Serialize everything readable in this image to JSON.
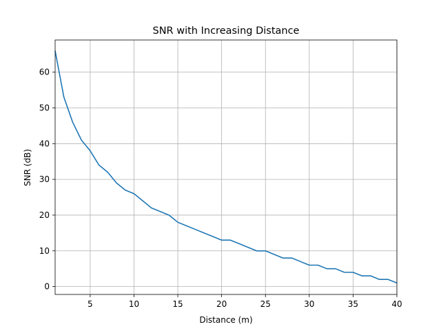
{
  "chart_data": {
    "type": "line",
    "title": "SNR with Increasing Distance",
    "xlabel": "Distance (m)",
    "ylabel": "SNR (dB)",
    "xlim": [
      1,
      40
    ],
    "ylim": [
      -2.2,
      69
    ],
    "xticks": [
      5,
      10,
      15,
      20,
      25,
      30,
      35,
      40
    ],
    "yticks": [
      0,
      10,
      20,
      30,
      40,
      50,
      60
    ],
    "grid": true,
    "series": [
      {
        "color": "#1f77b4",
        "x": [
          1,
          2,
          3,
          4,
          5,
          6,
          7,
          8,
          9,
          10,
          11,
          12,
          13,
          14,
          15,
          16,
          17,
          18,
          19,
          20,
          21,
          22,
          23,
          24,
          25,
          26,
          27,
          28,
          29,
          30,
          31,
          32,
          33,
          34,
          35,
          36,
          37,
          38,
          39,
          40
        ],
        "y": [
          66,
          53,
          46,
          41,
          38,
          34,
          32,
          29,
          27,
          26,
          24,
          22,
          21,
          20,
          18,
          17,
          16,
          15,
          14,
          13,
          13,
          12,
          11,
          10,
          10,
          9,
          8,
          8,
          7,
          6,
          6,
          5,
          5,
          4,
          4,
          3,
          3,
          2,
          2,
          1
        ]
      }
    ]
  }
}
